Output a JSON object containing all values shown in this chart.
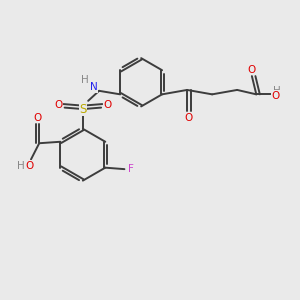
{
  "background_color": "#eaeaea",
  "bond_color": "#3d3d3d",
  "atom_colors": {
    "O": "#e00000",
    "N": "#2222ee",
    "S": "#bbaa00",
    "F": "#cc44cc",
    "H": "#888888",
    "C": "#3d3d3d"
  },
  "figsize": [
    3.0,
    3.0
  ],
  "dpi": 100
}
